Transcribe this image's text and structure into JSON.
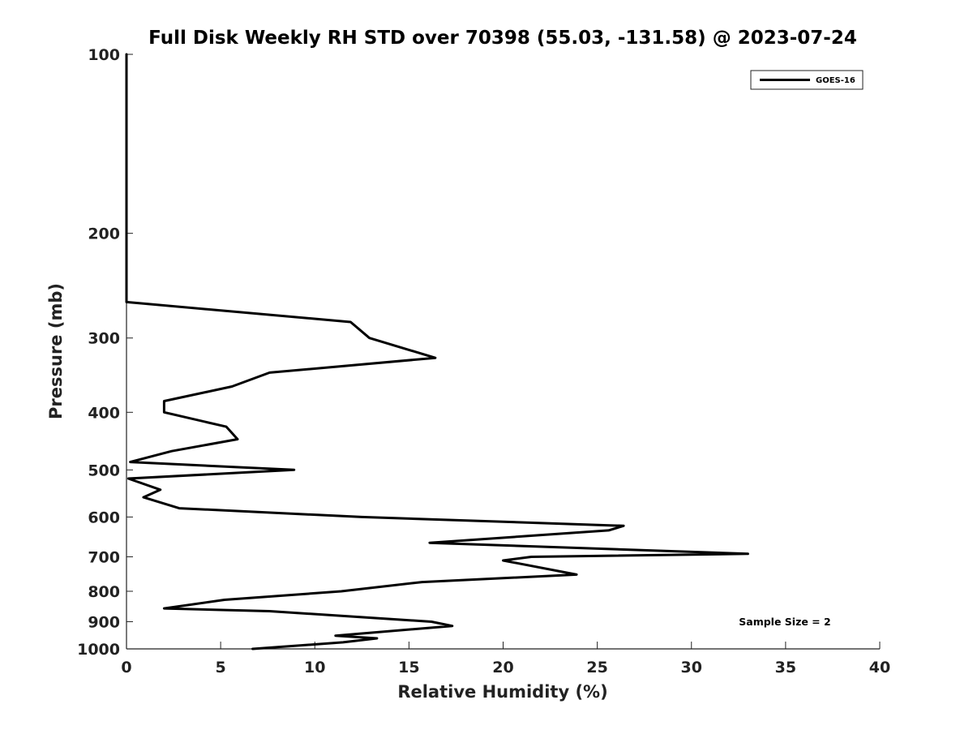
{
  "chart_data": {
    "type": "line",
    "title": "Full Disk Weekly RH STD over 70398 (55.03, -131.58) @ 2023-07-24",
    "xlabel": "Relative Humidity (%)",
    "ylabel": "Pressure (mb)",
    "xlim": [
      0,
      40
    ],
    "ylim": [
      100,
      1000
    ],
    "yscale": "log",
    "xticks": [
      0,
      5,
      10,
      15,
      20,
      25,
      30,
      35,
      40
    ],
    "yticks": [
      100,
      200,
      300,
      400,
      500,
      600,
      700,
      800,
      900,
      1000
    ],
    "legend_position": "top-right",
    "annotation": "Sample Size = 2",
    "grid": false,
    "series": [
      {
        "name": "GOES-16",
        "color": "#000000",
        "points": [
          {
            "x": 0,
            "p": 100
          },
          {
            "x": 0,
            "p": 261
          },
          {
            "x": 11.9,
            "p": 282
          },
          {
            "x": 12.9,
            "p": 300
          },
          {
            "x": 16.4,
            "p": 324
          },
          {
            "x": 7.6,
            "p": 343
          },
          {
            "x": 5.6,
            "p": 362
          },
          {
            "x": 2.0,
            "p": 383
          },
          {
            "x": 2.0,
            "p": 400
          },
          {
            "x": 5.3,
            "p": 423
          },
          {
            "x": 5.9,
            "p": 444
          },
          {
            "x": 2.4,
            "p": 465
          },
          {
            "x": 0.2,
            "p": 485
          },
          {
            "x": 8.9,
            "p": 500
          },
          {
            "x": 0.1,
            "p": 517
          },
          {
            "x": 1.8,
            "p": 540
          },
          {
            "x": 0.9,
            "p": 556
          },
          {
            "x": 2.8,
            "p": 580
          },
          {
            "x": 12.5,
            "p": 600
          },
          {
            "x": 26.4,
            "p": 621
          },
          {
            "x": 25.6,
            "p": 632
          },
          {
            "x": 16.1,
            "p": 663
          },
          {
            "x": 33.0,
            "p": 692
          },
          {
            "x": 21.5,
            "p": 700
          },
          {
            "x": 20.0,
            "p": 710
          },
          {
            "x": 23.9,
            "p": 750
          },
          {
            "x": 15.7,
            "p": 772
          },
          {
            "x": 11.4,
            "p": 800
          },
          {
            "x": 5.2,
            "p": 827
          },
          {
            "x": 2.0,
            "p": 855
          },
          {
            "x": 7.6,
            "p": 864
          },
          {
            "x": 16.2,
            "p": 900
          },
          {
            "x": 17.3,
            "p": 915
          },
          {
            "x": 11.1,
            "p": 950
          },
          {
            "x": 13.3,
            "p": 960
          },
          {
            "x": 11.5,
            "p": 975
          },
          {
            "x": 6.7,
            "p": 1000
          }
        ]
      }
    ]
  }
}
